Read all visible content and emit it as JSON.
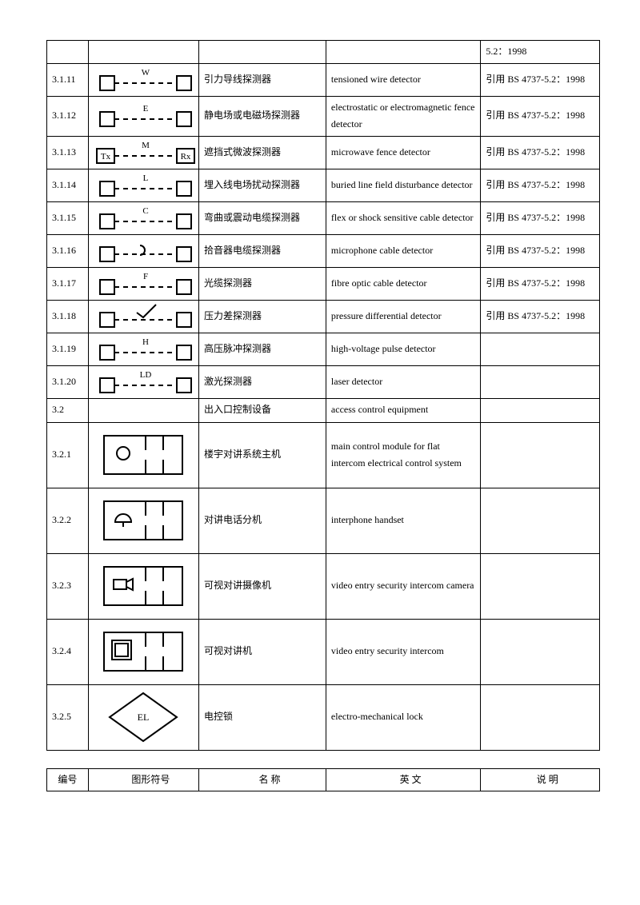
{
  "top_remnant": {
    "col5": "5.2：1998"
  },
  "rows": [
    {
      "num": "3.1.11",
      "sym": "dash-W",
      "cn": "引力导线探测器",
      "en": "tensioned wire detector",
      "note": "引用 BS 4737-5.2：1998",
      "h": "med"
    },
    {
      "num": "3.1.12",
      "sym": "dash-E",
      "cn": "静电场或电磁场探测器",
      "en": "electrostatic or electromagnetic fence detector",
      "note": "引用 BS 4737-5.2：1998",
      "h": "med"
    },
    {
      "num": "3.1.13",
      "sym": "dash-M-TxRx",
      "cn": "遮挡式微波探测器",
      "en": "microwave fence detector",
      "note": "引用 BS 4737-5.2：1998",
      "h": "med"
    },
    {
      "num": "3.1.14",
      "sym": "dash-L",
      "cn": "埋入线电场扰动探测器",
      "en": "buried line field disturbance detector",
      "note": "引用 BS 4737-5.2：1998",
      "h": "med"
    },
    {
      "num": "3.1.15",
      "sym": "dash-C",
      "cn": "弯曲或震动电缆探测器",
      "en": "flex or shock sensitive cable detector",
      "note": "引用 BS 4737-5.2：1998",
      "h": "med"
    },
    {
      "num": "3.1.16",
      "sym": "dash-arc",
      "cn": "拾音器电缆探测器",
      "en": "microphone cable detector",
      "note": "引用 BS 4737-5.2：1998",
      "h": "med"
    },
    {
      "num": "3.1.17",
      "sym": "dash-F",
      "cn": "光缆探测器",
      "en": "fibre optic cable detector",
      "note": "引用 BS 4737-5.2：1998",
      "h": "med"
    },
    {
      "num": "3.1.18",
      "sym": "dash-check",
      "cn": "压力差探测器",
      "en": "pressure differential detector",
      "note": "引用 BS 4737-5.2：1998",
      "h": "med"
    },
    {
      "num": "3.1.19",
      "sym": "dash-H",
      "cn": "高压脉冲探测器",
      "en": "high-voltage pulse detector",
      "note": "",
      "h": "med"
    },
    {
      "num": "3.1.20",
      "sym": "dash-LD",
      "cn": "激光探测器",
      "en": "laser detector",
      "note": "",
      "h": "med"
    },
    {
      "num": "3.2",
      "sym": "",
      "cn": "出入口控制设备",
      "en": "access control equipment",
      "note": "",
      "h": "short"
    },
    {
      "num": "3.2.1",
      "sym": "panel-circle",
      "cn": "楼宇对讲系统主机",
      "en": "main control module for flat intercom electrical control system",
      "note": "",
      "h": "tall"
    },
    {
      "num": "3.2.2",
      "sym": "panel-phone",
      "cn": "对讲电话分机",
      "en": "interphone handset",
      "note": "",
      "h": "tall"
    },
    {
      "num": "3.2.3",
      "sym": "panel-cam",
      "cn": "可视对讲摄像机",
      "en": "video entry security intercom camera",
      "note": "",
      "h": "tall"
    },
    {
      "num": "3.2.4",
      "sym": "panel-screen",
      "cn": "可视对讲机",
      "en": "video entry security intercom",
      "note": "",
      "h": "tall"
    },
    {
      "num": "3.2.5",
      "sym": "diamond-EL",
      "cn": "电控锁",
      "en": "electro-mechanical lock",
      "note": "",
      "h": "tall"
    }
  ],
  "header": {
    "c1": "编号",
    "c2": "图形符号",
    "c3": "名    称",
    "c4": "英    文",
    "c5": "说    明"
  }
}
